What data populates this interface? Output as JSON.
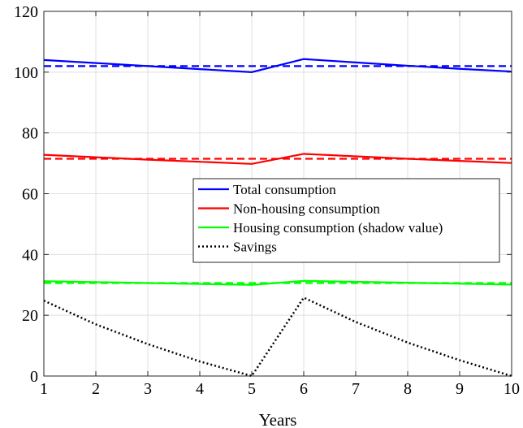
{
  "chart_data": {
    "type": "line",
    "title": "",
    "xlabel": "Years",
    "ylabel": "",
    "xlim": [
      1,
      10
    ],
    "ylim": [
      0,
      120
    ],
    "xticks": [
      "1",
      "2",
      "3",
      "4",
      "5",
      "6",
      "7",
      "8",
      "9",
      "10"
    ],
    "yticks": [
      "0",
      "20",
      "40",
      "60",
      "80",
      "100",
      "120"
    ],
    "grid": true,
    "legend_position": "center-right",
    "x": [
      1,
      2,
      3,
      4,
      5,
      6,
      7,
      8,
      9,
      10
    ],
    "series": [
      {
        "name": "Total consumption",
        "color": "#0000ff",
        "style": "solid",
        "values": [
          104,
          103,
          102,
          101,
          100,
          104.3,
          103.2,
          102.1,
          101.1,
          100.2
        ],
        "in_legend": true
      },
      {
        "name": "Non-housing consumption",
        "color": "#ff0000",
        "style": "solid",
        "values": [
          72.8,
          72.0,
          71.2,
          70.5,
          69.8,
          73.1,
          72.3,
          71.5,
          70.8,
          70.1
        ],
        "in_legend": true
      },
      {
        "name": "Housing consumption (shadow value)",
        "color": "#00ff00",
        "style": "solid",
        "values": [
          31.2,
          30.9,
          30.6,
          30.3,
          30.0,
          31.3,
          31.0,
          30.7,
          30.4,
          30.1
        ],
        "in_legend": true
      },
      {
        "name": "Savings",
        "color": "#000000",
        "style": "dotted",
        "values": [
          24.8,
          17.0,
          10.5,
          4.8,
          0,
          25.8,
          17.8,
          11.0,
          5.2,
          0
        ],
        "in_legend": true
      },
      {
        "color": "#0000ff",
        "style": "dashed",
        "values": [
          102,
          102,
          102,
          102,
          102,
          102,
          102,
          102,
          102,
          102
        ],
        "in_legend": false
      },
      {
        "color": "#ff0000",
        "style": "dashed",
        "values": [
          71.5,
          71.5,
          71.5,
          71.5,
          71.5,
          71.5,
          71.5,
          71.5,
          71.5,
          71.5
        ],
        "in_legend": false
      },
      {
        "color": "#00ff00",
        "style": "dashed",
        "values": [
          30.6,
          30.6,
          30.6,
          30.6,
          30.6,
          30.6,
          30.6,
          30.6,
          30.6,
          30.6
        ],
        "in_legend": false
      }
    ]
  }
}
